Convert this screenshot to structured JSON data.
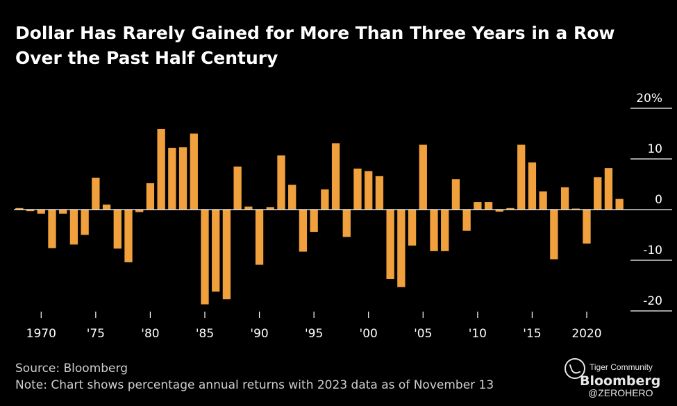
{
  "chart_data": {
    "type": "bar",
    "title": "Dollar Has Rarely Gained for More Than Three Years in a Row Over the Past Half Century",
    "title_lines": [
      "Dollar Has Rarely Gained for More Than Three Years in a Row",
      "Over the Past Half Century"
    ],
    "x": [
      1968,
      1969,
      1970,
      1971,
      1972,
      1973,
      1974,
      1975,
      1976,
      1977,
      1978,
      1979,
      1980,
      1981,
      1982,
      1983,
      1984,
      1985,
      1986,
      1987,
      1988,
      1989,
      1990,
      1991,
      1992,
      1993,
      1994,
      1995,
      1996,
      1997,
      1998,
      1999,
      2000,
      2001,
      2002,
      2003,
      2004,
      2005,
      2006,
      2007,
      2008,
      2009,
      2010,
      2011,
      2012,
      2013,
      2014,
      2015,
      2016,
      2017,
      2018,
      2019,
      2020,
      2021,
      2022,
      2023
    ],
    "values": [
      0.3,
      -0.3,
      -0.8,
      -7.6,
      -0.8,
      -6.9,
      -5.0,
      6.3,
      1.0,
      -7.7,
      -10.4,
      -0.5,
      5.2,
      15.9,
      12.2,
      12.3,
      15.0,
      -18.7,
      -16.2,
      -17.7,
      8.5,
      0.6,
      -10.9,
      0.5,
      10.7,
      4.9,
      -8.3,
      -4.4,
      4.0,
      13.1,
      -5.4,
      8.1,
      7.6,
      6.6,
      -13.7,
      -15.3,
      -7.1,
      12.8,
      -8.2,
      -8.2,
      6.0,
      -4.2,
      1.5,
      1.5,
      -0.4,
      0.3,
      12.8,
      9.3,
      3.6,
      -9.8,
      4.4,
      0.2,
      -6.7,
      6.4,
      8.2,
      2.1
    ],
    "color": "#f0a03c",
    "ylim": [
      -22,
      22
    ],
    "yticks": [
      20,
      10,
      0,
      -10,
      -20
    ],
    "ytick_labels": [
      "20%",
      "10",
      "0",
      "-10",
      "-20"
    ],
    "xticks": [
      1970,
      1975,
      1980,
      1985,
      1990,
      1995,
      2000,
      2005,
      2010,
      2015,
      2020
    ],
    "xtick_labels": [
      "1970",
      "'75",
      "'80",
      "'85",
      "'90",
      "'95",
      "'00",
      "'05",
      "'10",
      "'15",
      "2020"
    ],
    "grid": false,
    "zero_line": true
  },
  "footer": {
    "source": "Source: Bloomberg",
    "note": "Note: Chart shows percentage annual returns with 2023 data as of November 13"
  },
  "brand": {
    "community": "Tiger Community",
    "logo": "Bloomberg",
    "handle": "@ZEROHERO"
  }
}
